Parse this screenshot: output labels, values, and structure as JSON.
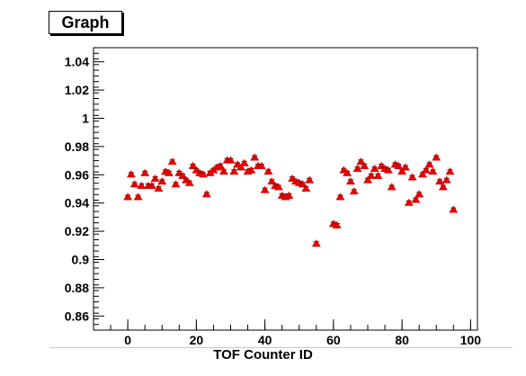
{
  "chart_data": {
    "type": "scatter",
    "title": "Graph",
    "xlabel": "TOF Counter ID",
    "ylabel": "",
    "xlim": [
      -10,
      102
    ],
    "ylim": [
      0.85,
      1.05
    ],
    "x_ticks": [
      0,
      20,
      40,
      60,
      80,
      100
    ],
    "x_tick_labels": [
      "0",
      "20",
      "40",
      "60",
      "80",
      "100"
    ],
    "y_ticks": [
      0.86,
      0.88,
      0.9,
      0.92,
      0.94,
      0.96,
      0.98,
      1.0,
      1.02,
      1.04
    ],
    "y_tick_labels": [
      "0.86",
      "0.88",
      "0.9",
      "0.92",
      "0.94",
      "0.96",
      "0.98",
      "1",
      "1.02",
      "1.04"
    ],
    "grid": false,
    "marker_color": "#e00000",
    "series": [
      {
        "x": [
          0,
          1,
          2,
          3,
          4,
          5,
          6,
          7,
          8,
          9,
          10,
          11,
          12,
          13,
          14,
          15,
          16,
          17,
          18,
          19,
          20,
          21,
          22,
          23,
          24,
          25,
          26,
          27,
          28,
          29,
          30,
          31,
          32,
          33,
          34,
          35,
          36,
          37,
          38,
          39,
          40,
          41,
          42,
          43,
          44,
          45,
          46,
          47,
          48,
          49,
          50,
          51,
          52,
          53,
          55,
          60,
          61,
          62,
          63,
          64,
          65,
          66,
          67,
          68,
          69,
          70,
          71,
          72,
          73,
          74,
          75,
          76,
          77,
          78,
          79,
          80,
          81,
          82,
          83,
          84,
          85,
          86,
          87,
          88,
          89,
          90,
          91,
          92,
          93,
          94,
          95
        ],
        "y": [
          0.944,
          0.96,
          0.953,
          0.944,
          0.952,
          0.961,
          0.952,
          0.952,
          0.957,
          0.95,
          0.955,
          0.962,
          0.961,
          0.969,
          0.953,
          0.961,
          0.959,
          0.956,
          0.954,
          0.966,
          0.963,
          0.961,
          0.96,
          0.946,
          0.961,
          0.963,
          0.965,
          0.966,
          0.962,
          0.97,
          0.97,
          0.962,
          0.967,
          0.965,
          0.968,
          0.962,
          0.963,
          0.972,
          0.966,
          0.966,
          0.949,
          0.962,
          0.955,
          0.952,
          0.951,
          0.945,
          0.944,
          0.945,
          0.957,
          0.955,
          0.954,
          0.953,
          0.95,
          0.956,
          0.911,
          0.925,
          0.924,
          0.944,
          0.963,
          0.961,
          0.955,
          0.948,
          0.964,
          0.969,
          0.966,
          0.956,
          0.959,
          0.964,
          0.959,
          0.966,
          0.964,
          0.963,
          0.951,
          0.967,
          0.966,
          0.962,
          0.965,
          0.94,
          0.958,
          0.942,
          0.946,
          0.96,
          0.963,
          0.967,
          0.962,
          0.972,
          0.955,
          0.951,
          0.956,
          0.962,
          0.935
        ],
        "yerr": 0.0015
      }
    ]
  }
}
